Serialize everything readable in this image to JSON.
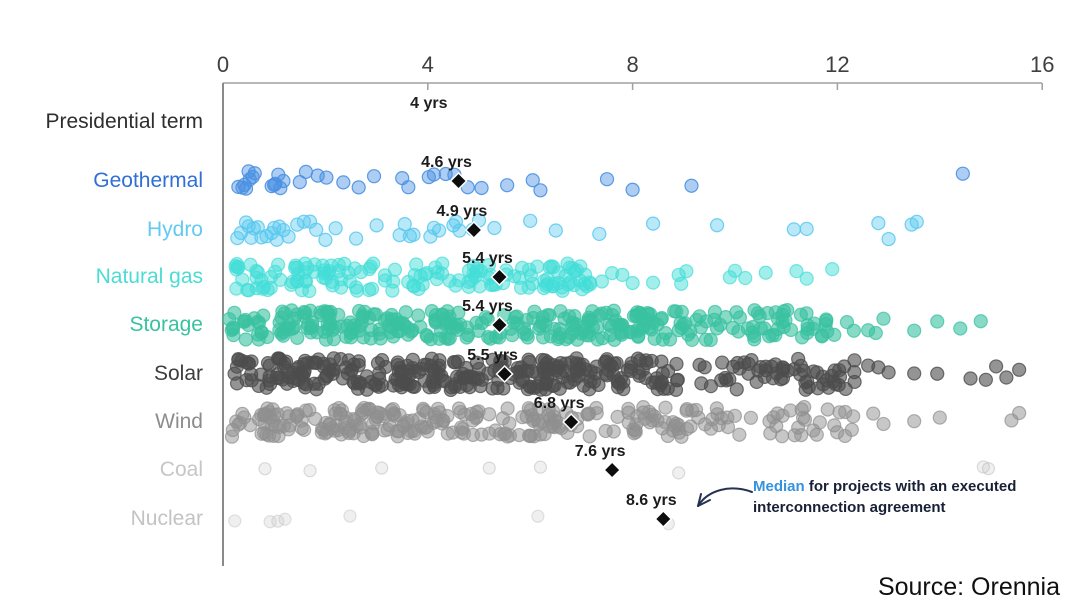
{
  "chart_data": {
    "type": "scatter",
    "title": "",
    "x_ticks": [
      "0",
      "4",
      "8",
      "12",
      "16"
    ],
    "x_range": [
      0,
      16
    ],
    "x_unit": "yrs",
    "legend_position": "none",
    "grid": false,
    "presidential_term": {
      "label": "Presidential term",
      "value": 4,
      "value_label": "4 yrs"
    },
    "series": [
      {
        "label": "Geothermal",
        "label_color": "#2f6fd6",
        "dot_color": "#4a90e2",
        "median": 4.6,
        "median_label": "4.6 yrs",
        "points": [
          0.3,
          0.38,
          0.42,
          0.45,
          0.5,
          0.52,
          0.58,
          0.62,
          0.95,
          1.0,
          1.02,
          1.08,
          1.12,
          1.18,
          1.5,
          1.62,
          1.85,
          2.02,
          2.35,
          2.65,
          2.95,
          3.5,
          3.62,
          4.02,
          4.12,
          4.35,
          4.52,
          4.78,
          5.05,
          5.55,
          6.05,
          6.2,
          7.5,
          8.0,
          9.15,
          14.45
        ],
        "clusters": []
      },
      {
        "label": "Hydro",
        "label_color": "#63c9f0",
        "dot_color": "#58c8ef",
        "median": 4.9,
        "median_label": "4.9 yrs",
        "points": [
          0.28,
          0.35,
          0.45,
          0.5,
          0.55,
          0.6,
          0.68,
          0.75,
          0.85,
          0.95,
          1.0,
          1.05,
          1.1,
          1.18,
          1.28,
          1.45,
          1.58,
          1.7,
          1.82,
          2.0,
          2.2,
          2.6,
          3.0,
          3.45,
          3.55,
          3.65,
          3.72,
          4.05,
          4.12,
          4.22,
          4.5,
          4.55,
          4.62,
          4.88,
          5.0,
          5.3,
          6.0,
          6.5,
          7.35,
          8.4,
          9.65,
          11.15,
          11.4,
          12.8,
          13.0,
          13.45,
          13.55
        ],
        "clusters": []
      },
      {
        "label": "Natural gas",
        "label_color": "#4cdcd4",
        "dot_color": "#43ddd8",
        "median": 5.4,
        "median_label": "5.4 yrs",
        "points": [
          7.4,
          7.6,
          7.8,
          8.0,
          8.4,
          8.9,
          8.95,
          9.05,
          9.9,
          10.0,
          10.2,
          10.6,
          11.2,
          11.4,
          11.9
        ],
        "clusters": [
          [
            0.15,
            7.2,
            150
          ]
        ]
      },
      {
        "label": "Storage",
        "label_color": "#3ac2a0",
        "dot_color": "#39c1a0",
        "median": 5.4,
        "median_label": "5.4 yrs",
        "points": [
          12.6,
          12.75,
          12.9,
          13.5,
          13.95,
          14.4,
          14.8
        ],
        "clusters": [
          [
            0.1,
            9.0,
            260
          ],
          [
            9.0,
            12.35,
            60
          ]
        ]
      },
      {
        "label": "Solar",
        "label_color": "#3d3d3d",
        "dot_color": "#4d4d4d",
        "median": 5.5,
        "median_label": "5.5 yrs",
        "points": [
          12.6,
          12.8,
          13.0,
          13.5,
          13.95,
          14.6,
          14.9,
          15.1,
          15.3,
          15.55
        ],
        "clusters": [
          [
            0.1,
            8.7,
            300
          ],
          [
            8.7,
            12.35,
            65
          ]
        ]
      },
      {
        "label": "Wind",
        "label_color": "#8c8c8c",
        "dot_color": "#8f8f8f",
        "median": 6.8,
        "median_label": "6.8 yrs",
        "points": [
          12.7,
          12.9,
          13.5,
          14.0,
          15.4,
          15.55
        ],
        "clusters": [
          [
            0.15,
            9.1,
            240
          ],
          [
            9.1,
            12.5,
            42
          ]
        ]
      },
      {
        "label": "Coal",
        "label_color": "#c6c6c6",
        "dot_color": "#b9b9b9",
        "median": 7.6,
        "median_label": "7.6 yrs",
        "points": [
          0.82,
          1.7,
          3.1,
          5.2,
          6.2,
          8.9,
          14.85,
          14.95
        ],
        "clusters": []
      },
      {
        "label": "Nuclear",
        "label_color": "#c3c3c3",
        "dot_color": "#c9c9c9",
        "median": 8.6,
        "median_label": "8.6 yrs",
        "points": [
          0.23,
          0.92,
          1.07,
          1.21,
          2.48,
          6.15,
          8.7
        ],
        "clusters": []
      }
    ],
    "median_note": {
      "highlight": "Median",
      "text": "for projects with an executed interconnection agreement",
      "highlight_color": "#3592dd"
    },
    "median_marker_color": "#0d0d0d"
  },
  "footer": {
    "source": "Source: Orennia"
  }
}
